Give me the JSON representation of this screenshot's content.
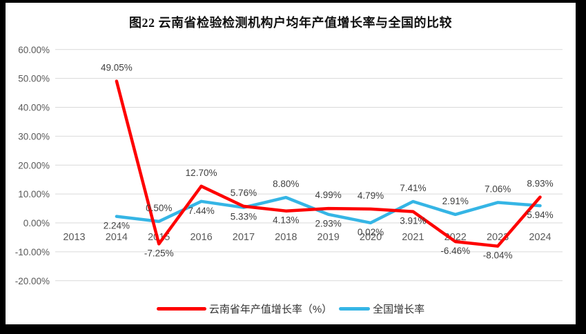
{
  "title": "图22  云南省检验检测机构户均年产值增长率与全国的比较",
  "axis": {
    "y_ticks": [
      "60.00%",
      "50.00%",
      "40.00%",
      "30.00%",
      "20.00%",
      "10.00%",
      "0.00%",
      "-10.00%",
      "-20.00%"
    ],
    "x_ticks": [
      "2013",
      "2014",
      "2015",
      "2016",
      "2017",
      "2018",
      "2019",
      "2020",
      "2021",
      "2022",
      "2023",
      "2024"
    ]
  },
  "chart_data": {
    "type": "line",
    "title": "图22  云南省检验检测机构户均年产值增长率与全国的比较",
    "categories": [
      2013,
      2014,
      2015,
      2016,
      2017,
      2018,
      2019,
      2020,
      2021,
      2022,
      2023,
      2024
    ],
    "series": [
      {
        "name": "云南省年产值增长率（%）",
        "color": "#fe0000",
        "values": [
          null,
          49.05,
          -7.25,
          12.7,
          5.76,
          4.13,
          4.99,
          4.79,
          3.91,
          -6.46,
          -8.04,
          8.93
        ]
      },
      {
        "name": "全国增长率",
        "color": "#35b5e5",
        "values": [
          null,
          2.24,
          0.5,
          7.44,
          5.33,
          8.8,
          2.93,
          0.02,
          7.41,
          2.91,
          7.06,
          5.94
        ]
      }
    ],
    "ylim": [
      -20,
      60
    ],
    "ytick_step": 10,
    "grid": true,
    "data_labels": true,
    "legend_position": "bottom",
    "colors": {
      "gridline": "#d9d9d9",
      "axis_text": "#595959",
      "data_label": "#404040",
      "frame": "#000000"
    }
  }
}
